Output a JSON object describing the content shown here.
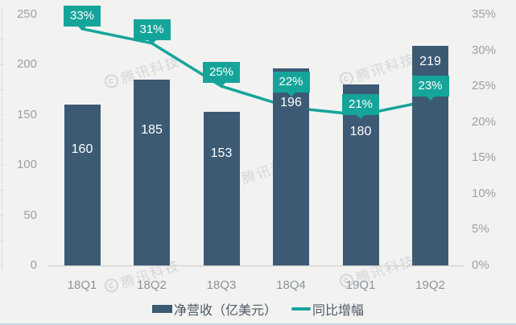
{
  "chart_data": {
    "type": "bar",
    "subtype": "bar-line-combo",
    "categories": [
      "18Q1",
      "18Q2",
      "18Q3",
      "18Q4",
      "19Q1",
      "19Q2"
    ],
    "series": [
      {
        "name": "净营收（亿美元）",
        "type": "bar",
        "axis": "left",
        "values": [
          160,
          185,
          153,
          196,
          180,
          219
        ],
        "labels": [
          "160",
          "185",
          "153",
          "196",
          "180",
          "219"
        ],
        "color": "#3d5a74"
      },
      {
        "name": "同比增幅",
        "type": "line",
        "axis": "right",
        "values": [
          33,
          31,
          25,
          22,
          21,
          23
        ],
        "labels": [
          "33%",
          "31%",
          "25%",
          "22%",
          "21%",
          "23%"
        ],
        "color": "#15a49a"
      }
    ],
    "left_axis": {
      "ticks": [
        "250",
        "200",
        "150",
        "100",
        "50",
        "0"
      ],
      "min": 0,
      "max": 250
    },
    "right_axis": {
      "ticks": [
        "35%",
        "30%",
        "25%",
        "20%",
        "15%",
        "10%",
        "5%",
        "0%"
      ],
      "min": 0,
      "max": 35
    },
    "legend": {
      "position": "bottom",
      "items": [
        "净营收（亿美元）",
        "同比增幅"
      ]
    },
    "grid": "off",
    "title": "",
    "watermark": "腾讯科技"
  },
  "colors": {
    "background": "#f2f2f1",
    "bar": "#3d5a74",
    "line": "#15a49a",
    "axis_text": "#9da0a3",
    "category_text": "#8d939a",
    "legend_text": "#4e5a66",
    "bar_value_text": "#ffffff",
    "callout_text": "#ffffff"
  }
}
